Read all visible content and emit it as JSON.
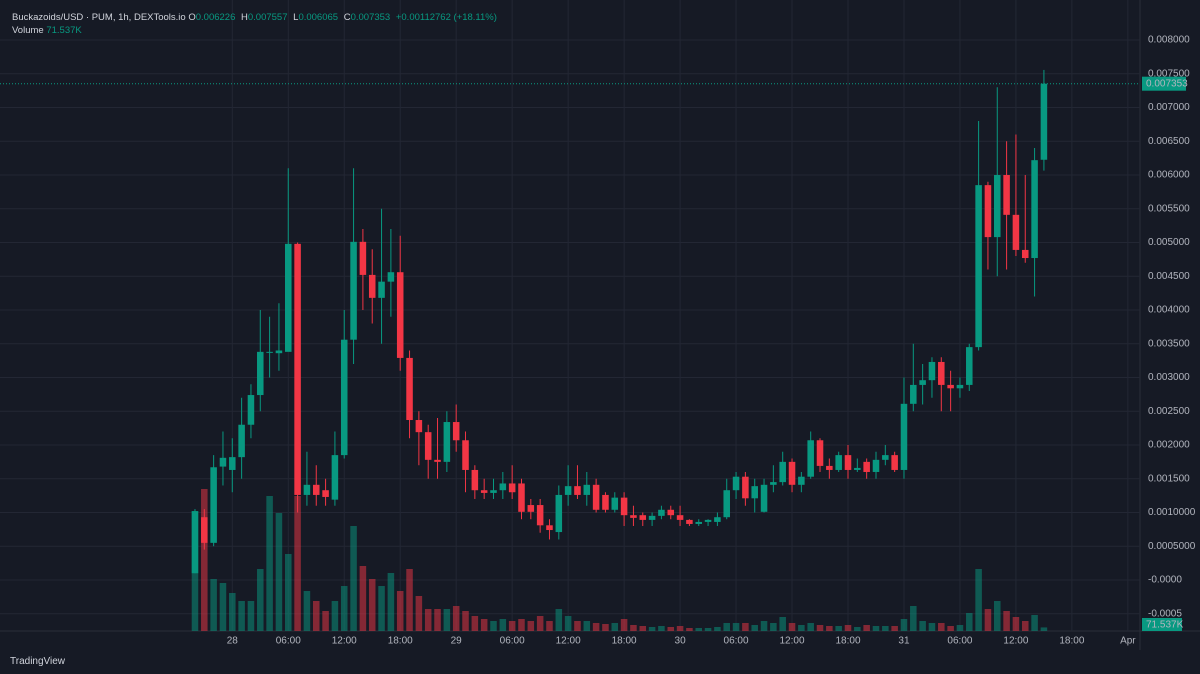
{
  "header": {
    "title": "Buckazoids/USD · PUM, 1h, DEXTools.io",
    "o": "O",
    "h": "H",
    "l": "L",
    "c": "C",
    "change": "+0.00112762 (+18.11%)",
    "volume_title": "Volume",
    "volume": "71.537K"
  },
  "brand": "TradingView",
  "chart_data": {
    "type": "candlestick",
    "up_color": "#089981",
    "down_color": "#f23645",
    "grid": true,
    "last_price_line": true,
    "open": [
      0.0001,
      0.00093,
      0.00055,
      0.00168,
      0.00163,
      0.00182,
      0.0023,
      0.00274,
      0.00337,
      0.00336,
      0.00338,
      0.00498,
      0.00126,
      0.00141,
      0.00133,
      0.00119,
      0.00185,
      0.00356,
      0.00501,
      0.00452,
      0.00418,
      0.00442,
      0.00456,
      0.00329,
      0.00237,
      0.00219,
      0.00178,
      0.00175,
      0.00234,
      0.00207,
      0.00163,
      0.00133,
      0.00129,
      0.00133,
      0.00143,
      0.00143,
      0.00111,
      0.00111,
      0.00081,
      0.00071,
      0.00126,
      0.00139,
      0.00126,
      0.00141,
      0.00126,
      0.00104,
      0.00122,
      0.00096,
      0.00096,
      0.00089,
      0.00095,
      0.00104,
      0.00096,
      0.00089,
      0.00083,
      0.00086,
      0.00086,
      0.00093,
      0.00133,
      0.00153,
      0.00121,
      0.00101,
      0.00141,
      0.00145,
      0.00175,
      0.00141,
      0.00153,
      0.00207,
      0.00169,
      0.00163,
      0.00185,
      0.00163,
      0.00175,
      0.0016,
      0.00178,
      0.00185,
      0.00163,
      0.00261,
      0.00289,
      0.00296,
      0.00323,
      0.00289,
      0.00284,
      0.00289,
      0.00345,
      0.00585,
      0.00508,
      0.006,
      0.00541,
      0.00489,
      0.00477,
      0.006226
    ],
    "high": [
      0.00105,
      0.00105,
      0.00185,
      0.0022,
      0.0021,
      0.0027,
      0.0029,
      0.004,
      0.0039,
      0.0041,
      0.0061,
      0.005,
      0.0019,
      0.0017,
      0.0015,
      0.0022,
      0.004,
      0.0061,
      0.0052,
      0.0049,
      0.0055,
      0.0052,
      0.0051,
      0.0034,
      0.0025,
      0.0023,
      0.0024,
      0.0025,
      0.0026,
      0.0022,
      0.0017,
      0.0015,
      0.0015,
      0.0016,
      0.0017,
      0.0015,
      0.0012,
      0.0012,
      0.0009,
      0.0014,
      0.0017,
      0.0017,
      0.0016,
      0.0015,
      0.0013,
      0.0013,
      0.0013,
      0.0011,
      0.001,
      0.001,
      0.0011,
      0.0011,
      0.0011,
      0.0009,
      0.0009,
      0.0009,
      0.001,
      0.0015,
      0.0016,
      0.0016,
      0.0015,
      0.0015,
      0.0017,
      0.0019,
      0.0018,
      0.0016,
      0.0022,
      0.0021,
      0.0018,
      0.0019,
      0.002,
      0.0018,
      0.0018,
      0.0019,
      0.002,
      0.0019,
      0.003,
      0.0035,
      0.0032,
      0.0033,
      0.0033,
      0.0031,
      0.003,
      0.0035,
      0.0068,
      0.0059,
      0.0073,
      0.0065,
      0.0066,
      0.006,
      0.0064,
      0.007557
    ],
    "low": [
      0.0001,
      0.00045,
      0.0005,
      0.0014,
      0.0013,
      0.0015,
      0.0021,
      0.0025,
      0.003,
      0.0031,
      0.0034,
      0.001,
      0.0011,
      0.0011,
      0.0011,
      0.0011,
      0.0018,
      0.0032,
      0.004,
      0.0038,
      0.0035,
      0.0039,
      0.0031,
      0.0021,
      0.0017,
      0.0015,
      0.0015,
      0.0016,
      0.0019,
      0.0013,
      0.0012,
      0.0012,
      0.0012,
      0.0012,
      0.0012,
      0.0009,
      0.0009,
      0.0007,
      0.0006,
      0.0006,
      0.0011,
      0.0012,
      0.0011,
      0.001,
      0.001,
      0.001,
      0.0008,
      0.0008,
      0.0008,
      0.0008,
      0.0009,
      0.0009,
      0.0008,
      0.0008,
      0.0008,
      0.0008,
      0.0008,
      0.0009,
      0.0012,
      0.0011,
      0.001,
      0.001,
      0.0013,
      0.0014,
      0.0013,
      0.0013,
      0.0015,
      0.0016,
      0.0015,
      0.0016,
      0.0015,
      0.0016,
      0.0015,
      0.0015,
      0.0017,
      0.0016,
      0.0015,
      0.0025,
      0.0026,
      0.0027,
      0.0025,
      0.0025,
      0.0027,
      0.0028,
      0.0034,
      0.0046,
      0.0045,
      0.0046,
      0.0048,
      0.0047,
      0.0042,
      0.006065
    ],
    "close": [
      0.00102,
      0.00055,
      0.00167,
      0.00181,
      0.00182,
      0.0023,
      0.00274,
      0.00338,
      0.00338,
      0.0034,
      0.00498,
      0.00126,
      0.00141,
      0.00126,
      0.00123,
      0.00185,
      0.00356,
      0.00501,
      0.00452,
      0.00418,
      0.00442,
      0.00456,
      0.00329,
      0.00237,
      0.00219,
      0.00178,
      0.00175,
      0.00234,
      0.00207,
      0.00163,
      0.00133,
      0.00129,
      0.00133,
      0.00143,
      0.0013,
      0.00101,
      0.00101,
      0.00081,
      0.00074,
      0.00126,
      0.00139,
      0.00126,
      0.00141,
      0.00104,
      0.00104,
      0.00122,
      0.00096,
      0.00092,
      0.00089,
      0.00095,
      0.00104,
      0.00096,
      0.00089,
      0.00083,
      0.00086,
      0.00089,
      0.00093,
      0.00133,
      0.00153,
      0.00121,
      0.00139,
      0.00141,
      0.00145,
      0.00175,
      0.00141,
      0.00153,
      0.00207,
      0.00169,
      0.00163,
      0.00185,
      0.00163,
      0.00166,
      0.0016,
      0.00178,
      0.00185,
      0.00163,
      0.00261,
      0.00289,
      0.00296,
      0.00323,
      0.00289,
      0.00284,
      0.00289,
      0.00345,
      0.00585,
      0.00508,
      0.006,
      0.00541,
      0.00489,
      0.00477,
      0.00622,
      0.007353
    ],
    "volume": [
      2400000,
      2840000,
      1040000,
      960000,
      760000,
      600000,
      600000,
      1240000,
      2700000,
      2360000,
      1540000,
      2700000,
      800000,
      600000,
      400000,
      600000,
      900000,
      2100000,
      1300000,
      1040000,
      900000,
      1160000,
      800000,
      1240000,
      700000,
      440000,
      440000,
      440000,
      500000,
      400000,
      300000,
      240000,
      200000,
      240000,
      200000,
      240000,
      200000,
      300000,
      200000,
      440000,
      300000,
      200000,
      200000,
      160000,
      140000,
      160000,
      240000,
      120000,
      100000,
      80000,
      100000,
      80000,
      100000,
      60000,
      60000,
      60000,
      80000,
      160000,
      160000,
      160000,
      120000,
      200000,
      160000,
      280000,
      160000,
      120000,
      160000,
      120000,
      100000,
      100000,
      120000,
      80000,
      120000,
      100000,
      100000,
      100000,
      240000,
      500000,
      200000,
      160000,
      160000,
      100000,
      120000,
      360000,
      1240000,
      440000,
      600000,
      400000,
      280000,
      200000,
      320000,
      71537
    ],
    "volume_ylim": [
      0,
      5000000
    ],
    "xlim": [
      -20.9,
      101.3
    ],
    "xticks": [
      {
        "value": 4,
        "label": "28"
      },
      {
        "value": 10,
        "label": "06:00"
      },
      {
        "value": 16,
        "label": "12:00"
      },
      {
        "value": 22,
        "label": "18:00"
      },
      {
        "value": 28,
        "label": "29"
      },
      {
        "value": 34,
        "label": "06:00"
      },
      {
        "value": 40,
        "label": "12:00"
      },
      {
        "value": 46,
        "label": "18:00"
      },
      {
        "value": 52,
        "label": "30"
      },
      {
        "value": 58,
        "label": "06:00"
      },
      {
        "value": 64,
        "label": "12:00"
      },
      {
        "value": 70,
        "label": "18:00"
      },
      {
        "value": 76,
        "label": "31"
      },
      {
        "value": 82,
        "label": "06:00"
      },
      {
        "value": 88,
        "label": "12:00"
      },
      {
        "value": 94,
        "label": "18:00"
      },
      {
        "value": 100,
        "label": "Apr"
      }
    ],
    "ylim": [
      -0.000756,
      0.008593
    ],
    "yticks": [
      {
        "value": 0.008,
        "label": "0.008000"
      },
      {
        "value": 0.0075,
        "label": "0.007500"
      },
      {
        "value": 0.007,
        "label": "0.007000"
      },
      {
        "value": 0.0065,
        "label": "0.006500"
      },
      {
        "value": 0.006,
        "label": "0.006000"
      },
      {
        "value": 0.0055,
        "label": "0.005500"
      },
      {
        "value": 0.005,
        "label": "0.005000"
      },
      {
        "value": 0.0045,
        "label": "0.004500"
      },
      {
        "value": 0.004,
        "label": "0.004000"
      },
      {
        "value": 0.0035,
        "label": "0.003500"
      },
      {
        "value": 0.003,
        "label": "0.003000"
      },
      {
        "value": 0.0025,
        "label": "0.002500"
      },
      {
        "value": 0.002,
        "label": "0.002000"
      },
      {
        "value": 0.0015,
        "label": "0.001500"
      },
      {
        "value": 0.001,
        "label": "0.0010000"
      },
      {
        "value": 0.0005,
        "label": "0.0005000"
      },
      {
        "value": 0,
        "label": "-0.0000"
      },
      {
        "value": -0.0005,
        "label": "-0.0005"
      }
    ]
  }
}
